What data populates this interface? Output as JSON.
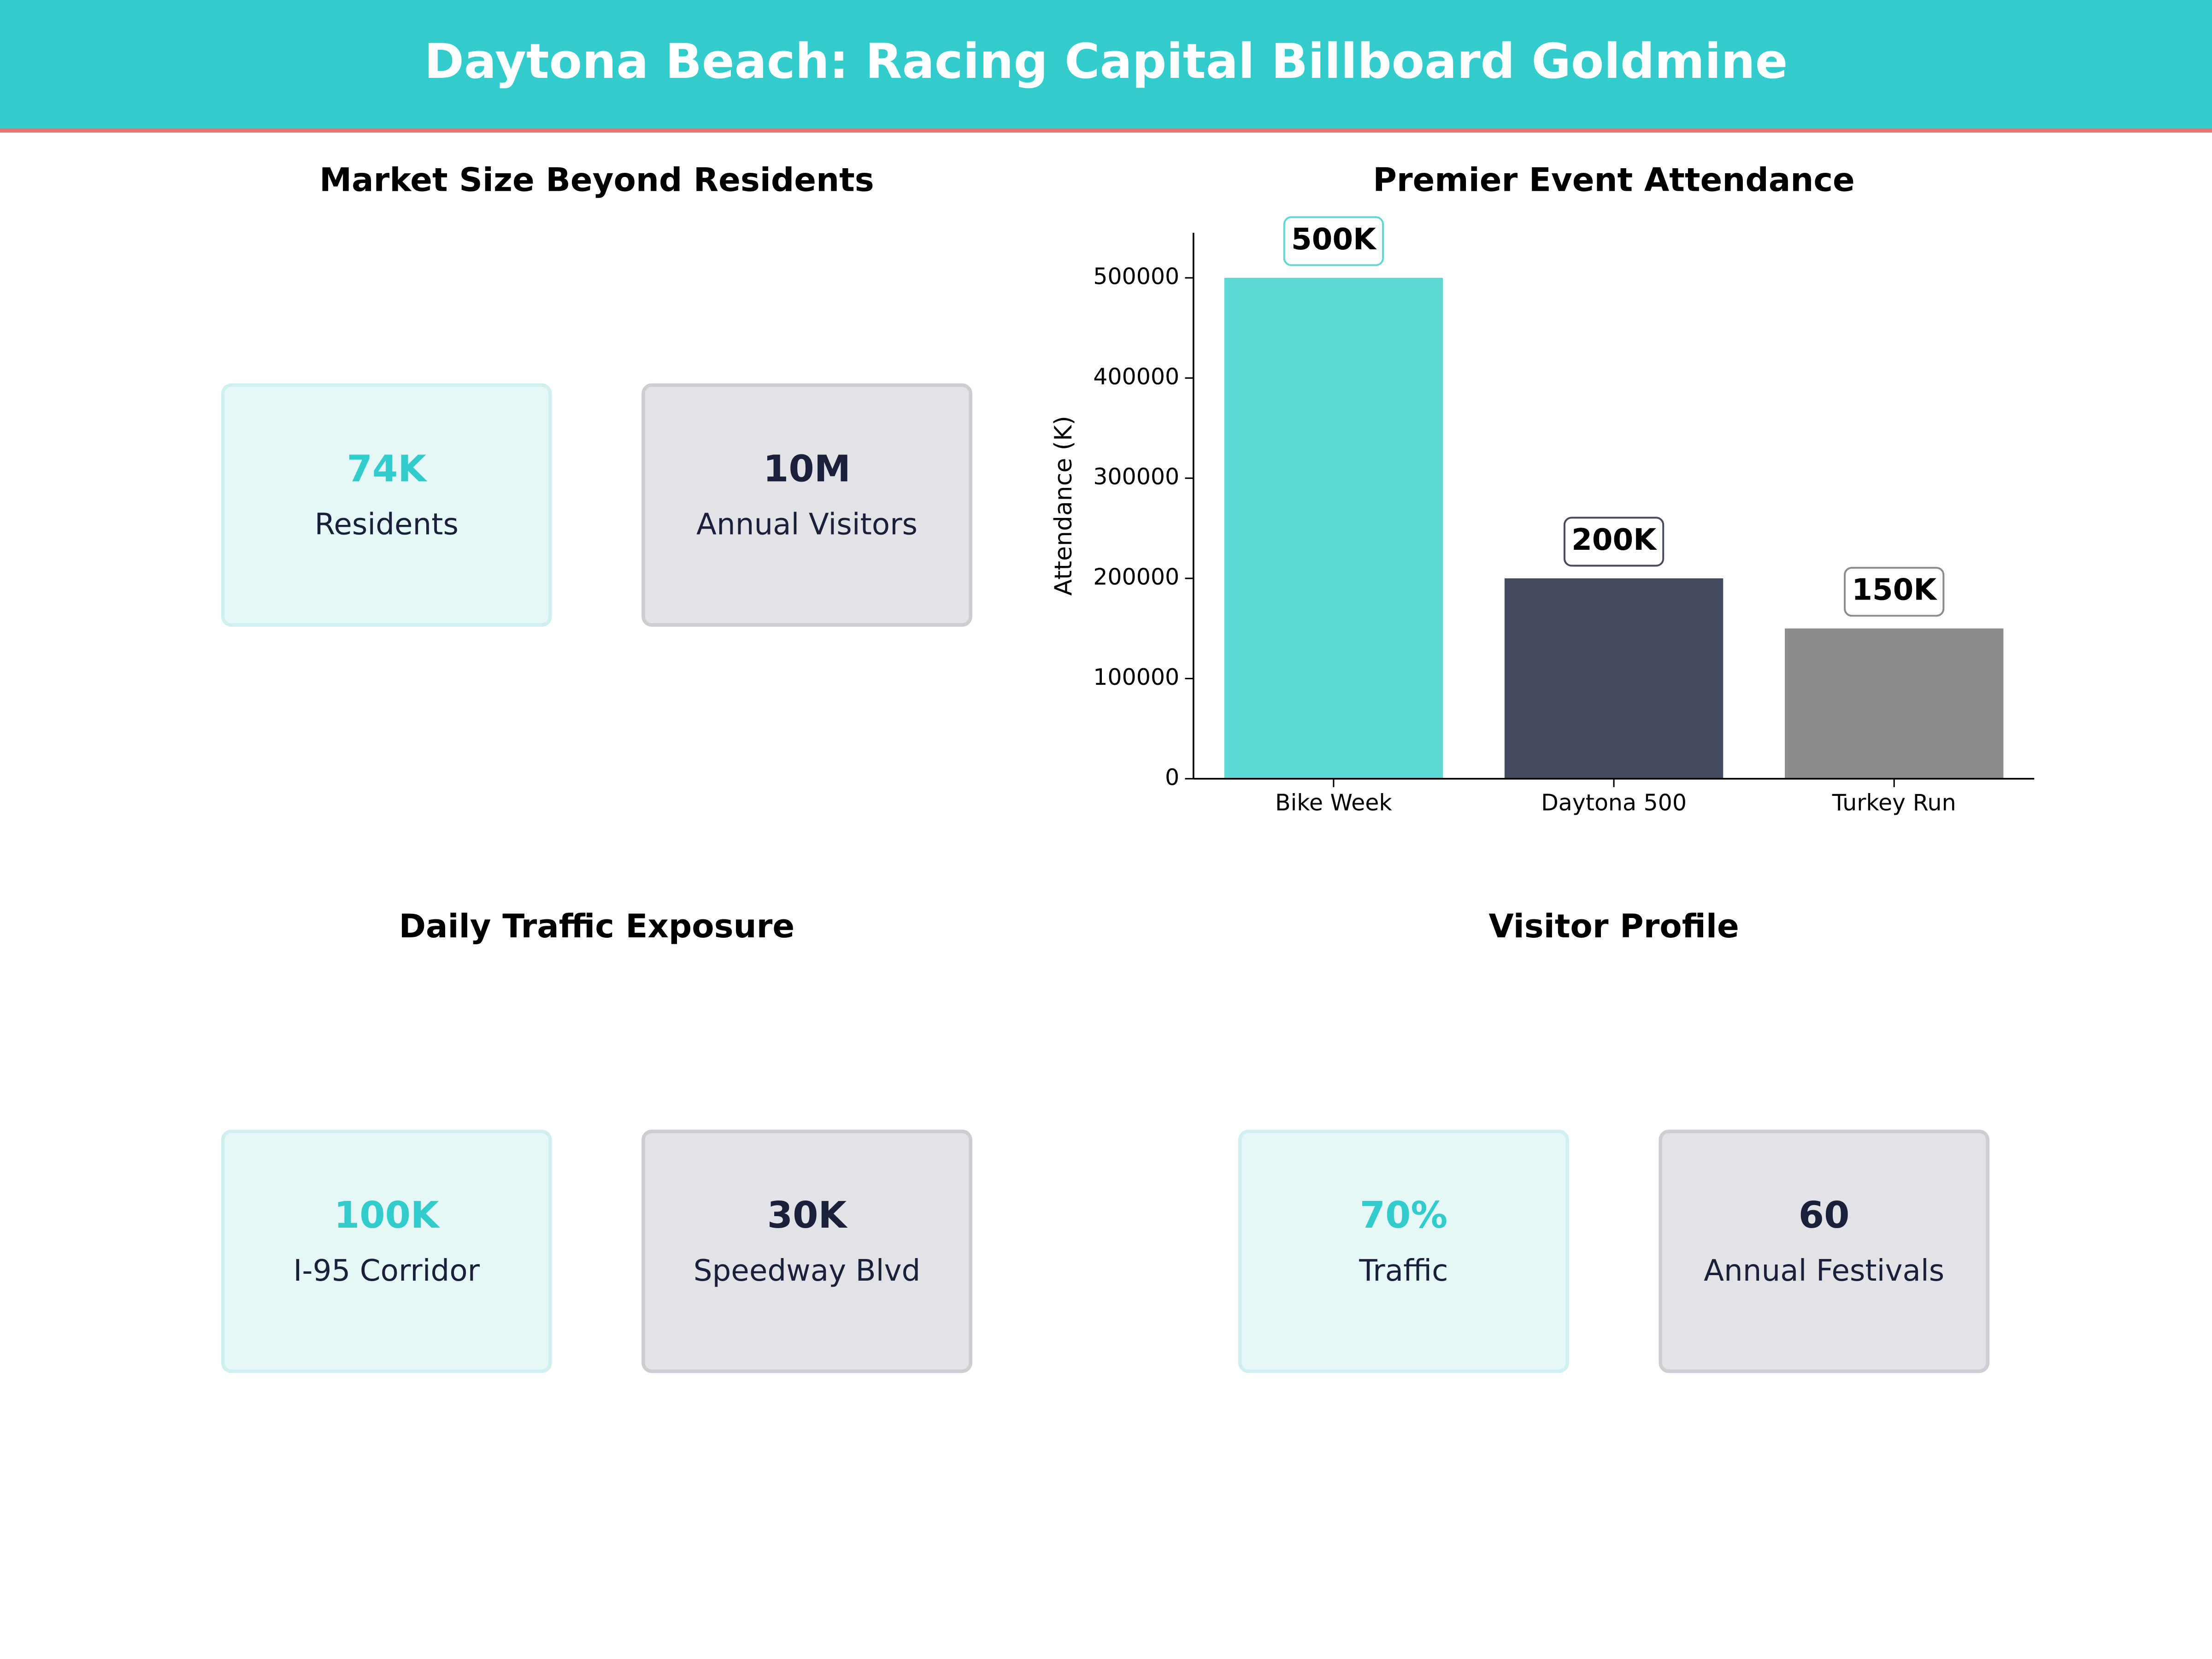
{
  "title": "Daytona Beach: Racing Capital Billboard Goldmine",
  "panels": [
    {
      "title": "Market Size Beyond Residents",
      "cards": [
        {
          "value": "74K",
          "label": "Residents"
        },
        {
          "value": "10M",
          "label": "Annual Visitors"
        }
      ]
    },
    {
      "title": "Daily Traffic Exposure",
      "cards": [
        {
          "value": "100K",
          "label": "I-95 Corridor"
        },
        {
          "value": "30K",
          "label": "Speedway Blvd"
        }
      ]
    },
    {
      "title": "Visitor Profile",
      "cards": [
        {
          "value": "70%",
          "label": "Traffic"
        },
        {
          "value": "60",
          "label": "Annual Festivals"
        }
      ]
    }
  ],
  "chart_data": {
    "type": "bar",
    "title": "Premier Event Attendance",
    "y_label": "Attendance (K)",
    "categories": [
      "Bike Week",
      "Daytona 500",
      "Turkey Run"
    ],
    "values": [
      500000,
      200000,
      150000
    ],
    "value_labels": [
      "500K",
      "200K",
      "150K"
    ],
    "colors": [
      "#5dd8d4",
      "#464a5f",
      "#8c8c8c"
    ],
    "ylim": [
      0,
      545000
    ],
    "yticks": [
      0,
      100000,
      200000,
      300000,
      400000,
      500000
    ]
  }
}
